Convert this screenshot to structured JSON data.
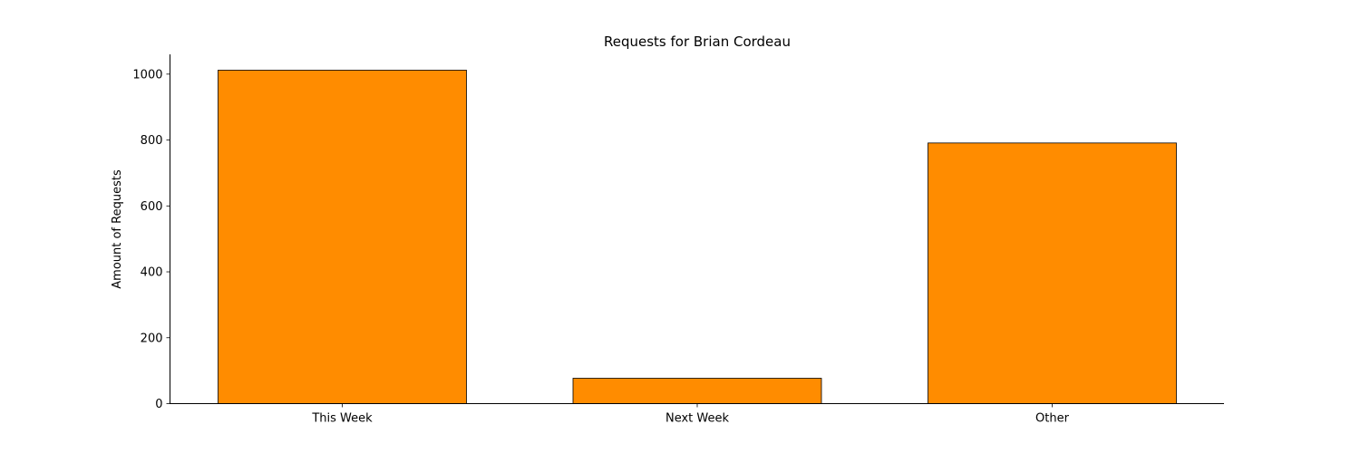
{
  "chart_data": {
    "type": "bar",
    "title": "Requests for Brian Cordeau",
    "xlabel": "",
    "ylabel": "Amount of Requests",
    "categories": [
      "This Week",
      "Next Week",
      "Other"
    ],
    "values": [
      1012,
      77,
      791
    ],
    "ylim": [
      0,
      1060
    ],
    "yticks": [
      0,
      200,
      400,
      600,
      800,
      1000
    ],
    "grid": false,
    "legend": "none",
    "bar_color": "#ff8c00",
    "edge_color": "#000000"
  }
}
